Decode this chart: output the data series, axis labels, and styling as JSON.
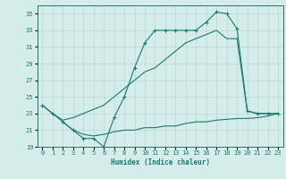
{
  "lA_x": [
    0,
    1,
    2,
    3,
    4,
    5,
    6,
    7,
    8,
    9,
    10,
    11,
    12,
    13,
    14,
    15,
    16,
    17,
    18,
    19,
    20,
    21,
    22,
    23
  ],
  "lA_y": [
    24,
    23,
    22,
    21,
    20,
    20,
    19,
    22.5,
    25,
    28.5,
    31.5,
    33,
    33,
    33,
    33,
    33,
    34,
    35.2,
    35,
    33.2,
    23.3,
    23,
    23,
    23
  ],
  "lB_x": [
    0,
    1,
    2,
    3,
    4,
    5,
    6,
    7,
    8,
    9,
    10,
    11,
    12,
    13,
    14,
    15,
    16,
    17,
    18,
    19,
    20,
    21,
    22,
    23
  ],
  "lB_y": [
    24,
    23,
    22.2,
    22.5,
    23,
    23.5,
    24,
    25,
    26,
    27,
    28,
    28.5,
    29.5,
    30.5,
    31.5,
    32,
    32.5,
    33,
    32,
    32,
    23.3,
    23,
    23,
    23
  ],
  "lC_x": [
    2,
    3,
    4,
    5,
    6,
    7,
    8,
    9,
    10,
    11,
    12,
    13,
    14,
    15,
    16,
    17,
    18,
    19,
    20,
    21,
    22,
    23
  ],
  "lC_y": [
    22,
    21,
    20.5,
    20.3,
    20.5,
    20.8,
    21,
    21,
    21.3,
    21.3,
    21.5,
    21.5,
    21.8,
    22,
    22,
    22.2,
    22.3,
    22.4,
    22.4,
    22.5,
    22.7,
    23
  ],
  "color": "#1a7a6e",
  "bg_color": "#d4ecea",
  "grid_color": "#b8d8d4",
  "xlim": [
    -0.5,
    23.5
  ],
  "ylim": [
    19,
    36
  ],
  "yticks": [
    19,
    21,
    23,
    25,
    27,
    29,
    31,
    33,
    35
  ],
  "xticks": [
    0,
    1,
    2,
    3,
    4,
    5,
    6,
    7,
    8,
    9,
    10,
    11,
    12,
    13,
    14,
    15,
    16,
    17,
    18,
    19,
    20,
    21,
    22,
    23
  ],
  "xlabel": "Humidex (Indice chaleur)"
}
